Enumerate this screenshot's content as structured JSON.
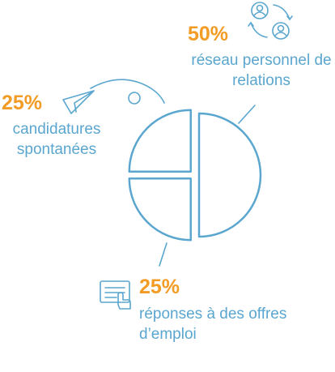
{
  "chart_data": {
    "type": "pie",
    "categories": [
      "réseau personnel de relations",
      "réponses à des offres d’emploi",
      "candidatures spontanées"
    ],
    "values": [
      50,
      25,
      25
    ],
    "value_labels": [
      "50%",
      "25%",
      "25%"
    ],
    "color": "#5aa6cf",
    "label_color": "#f39c25"
  }
}
